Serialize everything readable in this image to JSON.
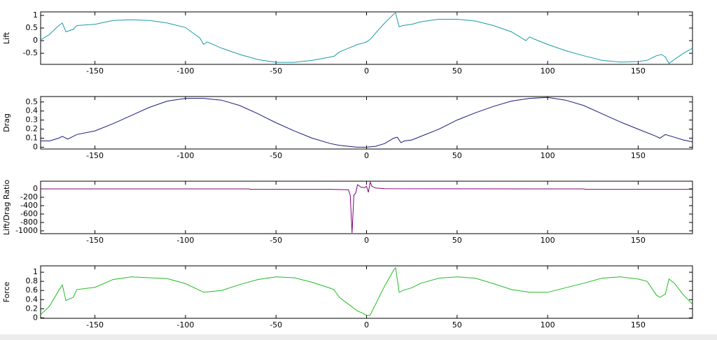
{
  "chart_data": [
    {
      "type": "line",
      "ylabel": "Lift",
      "color": "#1a9aa8",
      "x": [
        -180,
        -175,
        -170,
        -168,
        -166,
        -162,
        -160,
        -150,
        -140,
        -130,
        -120,
        -110,
        -100,
        -92,
        -90,
        -88,
        -80,
        -70,
        -60,
        -50,
        -40,
        -30,
        -20,
        -18,
        -15,
        -10,
        -5,
        -2,
        0,
        2,
        5,
        10,
        15,
        16,
        18,
        20,
        25,
        30,
        40,
        50,
        60,
        70,
        80,
        88,
        90,
        92,
        100,
        110,
        120,
        130,
        140,
        150,
        155,
        160,
        163,
        165,
        167,
        170,
        175,
        180
      ],
      "values": [
        0.03,
        0.25,
        0.6,
        0.7,
        0.35,
        0.45,
        0.6,
        0.65,
        0.8,
        0.83,
        0.8,
        0.7,
        0.52,
        0.1,
        -0.15,
        -0.05,
        -0.3,
        -0.55,
        -0.75,
        -0.86,
        -0.86,
        -0.78,
        -0.65,
        -0.62,
        -0.45,
        -0.3,
        -0.15,
        -0.1,
        -0.05,
        0.05,
        0.3,
        0.7,
        1.05,
        1.1,
        0.55,
        0.6,
        0.65,
        0.75,
        0.85,
        0.85,
        0.78,
        0.6,
        0.35,
        0.0,
        0.15,
        0.08,
        -0.15,
        -0.4,
        -0.6,
        -0.78,
        -0.85,
        -0.83,
        -0.78,
        -0.6,
        -0.55,
        -0.65,
        -0.9,
        -0.75,
        -0.5,
        -0.3
      ],
      "xlim": [
        -180,
        180
      ],
      "xticks": [
        -150,
        -100,
        -50,
        0,
        50,
        100,
        150
      ],
      "ylim": [
        -0.94,
        1.14
      ],
      "yticks": [
        -0.5,
        0,
        0.5,
        1
      ]
    },
    {
      "type": "line",
      "ylabel": "Drag",
      "color": "#1a1a7a",
      "x": [
        -180,
        -175,
        -170,
        -168,
        -165,
        -160,
        -150,
        -140,
        -130,
        -120,
        -110,
        -100,
        -90,
        -80,
        -70,
        -60,
        -50,
        -40,
        -30,
        -20,
        -15,
        -10,
        -5,
        0,
        5,
        10,
        15,
        17,
        19,
        21,
        25,
        30,
        40,
        50,
        60,
        70,
        80,
        90,
        100,
        110,
        120,
        130,
        140,
        150,
        160,
        162,
        165,
        170,
        175,
        180
      ],
      "values": [
        0.07,
        0.07,
        0.1,
        0.12,
        0.09,
        0.14,
        0.18,
        0.26,
        0.35,
        0.44,
        0.51,
        0.54,
        0.54,
        0.52,
        0.46,
        0.37,
        0.27,
        0.18,
        0.1,
        0.04,
        0.02,
        0.01,
        0.0,
        0.0,
        0.01,
        0.04,
        0.1,
        0.11,
        0.05,
        0.07,
        0.08,
        0.12,
        0.2,
        0.3,
        0.38,
        0.45,
        0.51,
        0.54,
        0.55,
        0.52,
        0.46,
        0.37,
        0.28,
        0.2,
        0.12,
        0.1,
        0.14,
        0.11,
        0.08,
        0.06
      ],
      "xlim": [
        -180,
        180
      ],
      "xticks": [
        -150,
        -100,
        -50,
        0,
        50,
        100,
        150
      ],
      "ylim": [
        -0.02,
        0.56
      ],
      "yticks": [
        0,
        0.1,
        0.2,
        0.3,
        0.4,
        0.5
      ]
    },
    {
      "type": "line",
      "ylabel": "Lift/Drag Ratio",
      "color": "#800080",
      "x": [
        -180,
        -120,
        -65,
        -64,
        -20,
        -10,
        -9,
        -8,
        -7.5,
        -7,
        -6,
        -5,
        -3,
        -1,
        0,
        1,
        2,
        3,
        5,
        10,
        50,
        120,
        121,
        180
      ],
      "values": [
        0,
        0,
        0,
        -10,
        -10,
        -20,
        -150,
        -1050,
        -600,
        -150,
        -100,
        100,
        40,
        30,
        60,
        -80,
        160,
        60,
        20,
        5,
        2,
        0,
        -10,
        -10
      ],
      "xlim": [
        -180,
        180
      ],
      "xticks": [
        -150,
        -100,
        -50,
        0,
        50,
        100,
        150
      ],
      "ylim": [
        -1067,
        183
      ],
      "yticks": [
        -1000,
        -800,
        -600,
        -400,
        -200,
        0
      ]
    },
    {
      "type": "line",
      "ylabel": "Force",
      "color": "#22bb22",
      "x": [
        -180,
        -175,
        -170,
        -168,
        -166,
        -162,
        -160,
        -150,
        -140,
        -130,
        -120,
        -110,
        -100,
        -90,
        -80,
        -70,
        -60,
        -50,
        -40,
        -30,
        -20,
        -18,
        -15,
        -10,
        -5,
        -2,
        0,
        2,
        5,
        10,
        15,
        16,
        18,
        20,
        25,
        30,
        40,
        50,
        60,
        70,
        80,
        90,
        100,
        110,
        120,
        130,
        140,
        150,
        155,
        160,
        162,
        165,
        167,
        170,
        175,
        180
      ],
      "values": [
        0.07,
        0.26,
        0.6,
        0.72,
        0.38,
        0.45,
        0.62,
        0.67,
        0.84,
        0.9,
        0.88,
        0.86,
        0.75,
        0.56,
        0.6,
        0.73,
        0.84,
        0.9,
        0.88,
        0.78,
        0.65,
        0.62,
        0.45,
        0.3,
        0.15,
        0.1,
        0.05,
        0.06,
        0.3,
        0.7,
        1.05,
        1.1,
        0.56,
        0.6,
        0.66,
        0.76,
        0.87,
        0.9,
        0.87,
        0.75,
        0.62,
        0.56,
        0.56,
        0.66,
        0.76,
        0.87,
        0.9,
        0.85,
        0.8,
        0.5,
        0.45,
        0.52,
        0.85,
        0.76,
        0.5,
        0.3
      ],
      "xlim": [
        -180,
        180
      ],
      "xticks": [
        -150,
        -100,
        -50,
        0,
        50,
        100,
        150
      ],
      "ylim": [
        -0.01,
        1.14
      ],
      "yticks": [
        0,
        0.2,
        0.4,
        0.6,
        0.8,
        1
      ]
    }
  ]
}
